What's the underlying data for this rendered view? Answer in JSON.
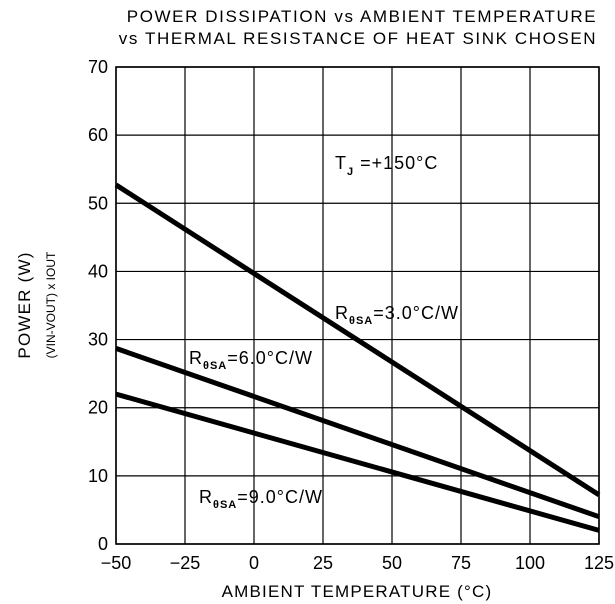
{
  "chart_data": {
    "type": "line",
    "title_lines": [
      "POWER DISSIPATION vs AMBIENT TEMPERATURE",
      "vs THERMAL RESISTANCE OF HEAT SINK CHOSEN"
    ],
    "xlabel": "AMBIENT TEMPERATURE (°C)",
    "ylabel": "POWER (W)",
    "ylabel_sub": "(VIN-VOUT) x IOUT",
    "xlim": [
      -50,
      125
    ],
    "ylim": [
      0,
      70
    ],
    "x_ticks": [
      -50,
      -25,
      0,
      25,
      50,
      75,
      100,
      125
    ],
    "x_tick_labels": [
      "−50",
      "−25",
      "0",
      "25",
      "50",
      "75",
      "100",
      "125"
    ],
    "y_ticks": [
      0,
      10,
      20,
      30,
      40,
      50,
      60,
      70
    ],
    "y_tick_labels": [
      "0",
      "10",
      "20",
      "30",
      "40",
      "50",
      "60",
      "70"
    ],
    "grid": true,
    "series": [
      {
        "x": [
          -50,
          125
        ],
        "y": [
          52.7,
          7.2
        ]
      },
      {
        "x": [
          -50,
          125
        ],
        "y": [
          28.7,
          4.0
        ]
      },
      {
        "x": [
          -50,
          125
        ],
        "y": [
          22.0,
          2.0
        ]
      }
    ],
    "annotations": {
      "tj": {
        "main": "T",
        "sub": "J",
        "rest": " =+150°C"
      },
      "r3": {
        "main": "R",
        "sub": "θSA",
        "rest": "=3.0°C/W"
      },
      "r6": {
        "main": "R",
        "sub": "θSA",
        "rest": "=6.0°C/W"
      },
      "r9": {
        "main": "R",
        "sub": "θSA",
        "rest": "=9.0°C/W"
      }
    }
  }
}
